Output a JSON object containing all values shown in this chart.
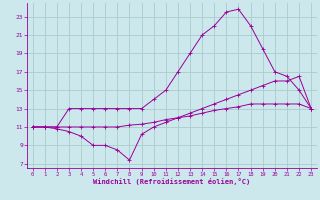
{
  "bg_color": "#cce8ec",
  "grid_color": "#aacccc",
  "line_color": "#990099",
  "xlabel": "Windchill (Refroidissement éolien,°C)",
  "xlim": [
    -0.5,
    23.5
  ],
  "ylim": [
    6.5,
    24.5
  ],
  "yticks": [
    7,
    9,
    11,
    13,
    15,
    17,
    19,
    21,
    23
  ],
  "xticks": [
    0,
    1,
    2,
    3,
    4,
    5,
    6,
    7,
    8,
    9,
    10,
    11,
    12,
    13,
    14,
    15,
    16,
    17,
    18,
    19,
    20,
    21,
    22,
    23
  ],
  "line1_x": [
    0,
    1,
    2,
    3,
    4,
    5,
    6,
    7,
    8,
    9,
    10,
    11,
    12,
    13,
    14,
    15,
    16,
    17,
    18,
    19,
    20,
    21,
    22,
    23
  ],
  "line1_y": [
    11,
    11,
    11,
    13,
    13,
    13,
    13,
    13,
    13,
    13,
    14,
    15,
    17,
    19,
    21,
    22,
    23.5,
    23.8,
    22,
    19.5,
    17,
    16.5,
    15,
    13
  ],
  "line2_x": [
    0,
    1,
    2,
    3,
    4,
    5,
    6,
    7,
    8,
    9,
    10,
    11,
    12,
    13,
    14,
    15,
    16,
    17,
    18,
    19,
    20,
    21,
    22,
    23
  ],
  "line2_y": [
    11,
    11,
    10.8,
    10.5,
    10,
    9,
    9,
    8.5,
    7.4,
    10.2,
    11,
    11.5,
    12,
    12.5,
    13,
    13.5,
    14,
    14.5,
    15,
    15.5,
    16,
    16,
    16.5,
    13
  ],
  "line3_x": [
    0,
    1,
    2,
    3,
    4,
    5,
    6,
    7,
    8,
    9,
    10,
    11,
    12,
    13,
    14,
    15,
    16,
    17,
    18,
    19,
    20,
    21,
    22,
    23
  ],
  "line3_y": [
    11,
    11,
    11,
    11,
    11,
    11,
    11,
    11,
    11.2,
    11.3,
    11.5,
    11.8,
    12,
    12.2,
    12.5,
    12.8,
    13,
    13.2,
    13.5,
    13.5,
    13.5,
    13.5,
    13.5,
    13
  ]
}
